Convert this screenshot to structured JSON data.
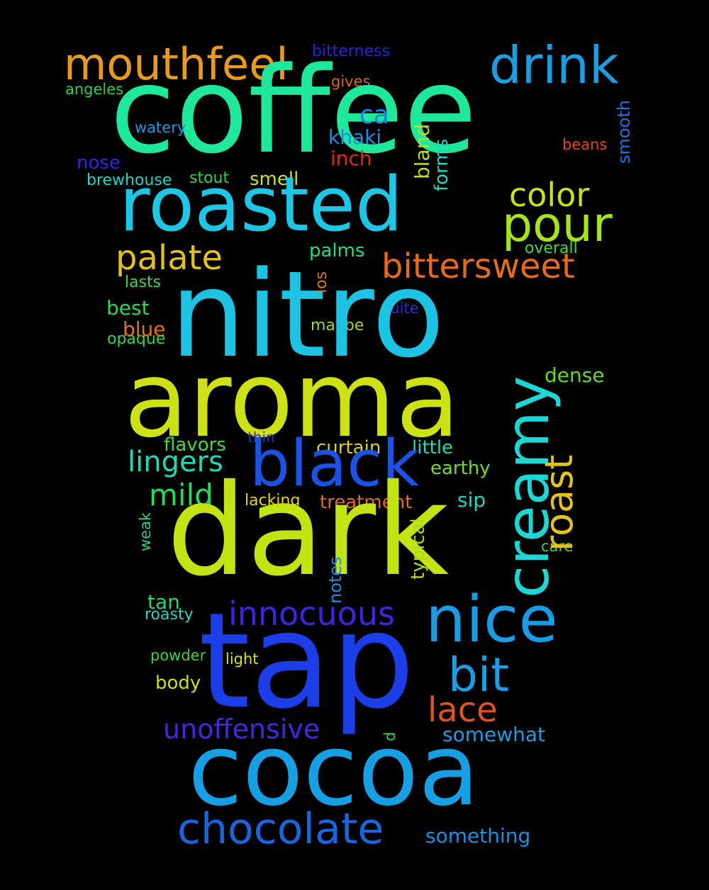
{
  "background": "#000000",
  "words": {
    "coffee": {
      "text": "coffee",
      "color": "#1ee89a"
    },
    "nitro": {
      "text": "nitro",
      "color": "#1cc3e2"
    },
    "aroma": {
      "text": "aroma",
      "color": "#cde215"
    },
    "dark": {
      "text": "dark",
      "color": "#c4e313"
    },
    "tap": {
      "text": "tap",
      "color": "#1b3ee8"
    },
    "cocoa": {
      "text": "cocoa",
      "color": "#169fe3"
    },
    "roasted": {
      "text": "roasted",
      "color": "#1cc6e4"
    },
    "mouthfeel": {
      "text": "mouthfeel",
      "color": "#e79a1c"
    },
    "drink": {
      "text": "drink",
      "color": "#1b9ee0"
    },
    "black": {
      "text": "black",
      "color": "#1a52e5"
    },
    "creamy": {
      "text": "creamy",
      "color": "#1cd7d5"
    },
    "nice": {
      "text": "nice",
      "color": "#1a9be6"
    },
    "chocolate": {
      "text": "chocolate",
      "color": "#1865e0"
    },
    "roast": {
      "text": "roast",
      "color": "#e3c31a"
    },
    "pour": {
      "text": "pour",
      "color": "#a5e31b"
    },
    "color": {
      "text": "color",
      "color": "#c1e41b"
    },
    "palate": {
      "text": "palate",
      "color": "#e3c01c"
    },
    "bittersweet": {
      "text": "bittersweet",
      "color": "#e56a1b"
    },
    "innocuous": {
      "text": "innocuous",
      "color": "#3a25e3"
    },
    "bit": {
      "text": "bit",
      "color": "#1a9de4"
    },
    "lace": {
      "text": "lace",
      "color": "#e2531b"
    },
    "unoffensive": {
      "text": "unoffensive",
      "color": "#4a22e2"
    },
    "lingers": {
      "text": "lingers",
      "color": "#1dd9b4"
    },
    "mild": {
      "text": "mild",
      "color": "#21dd58"
    },
    "ca": {
      "text": "ca",
      "color": "#1887e3"
    },
    "bitterness": {
      "text": "bitterness",
      "color": "#2b22d8"
    },
    "angeles": {
      "text": "angeles",
      "color": "#2cd14a"
    },
    "gives": {
      "text": "gives",
      "color": "#e0641a"
    },
    "smooth": {
      "text": "smooth",
      "color": "#1e73e0"
    },
    "watery": {
      "text": "watery",
      "color": "#1a9be0"
    },
    "khaki": {
      "text": "khaki",
      "color": "#1a8ee4"
    },
    "bland": {
      "text": "bland",
      "color": "#b8e01c"
    },
    "forms": {
      "text": "forms",
      "color": "#20d6c1"
    },
    "beans": {
      "text": "beans",
      "color": "#e1471c"
    },
    "nose": {
      "text": "nose",
      "color": "#3125e0"
    },
    "inch": {
      "text": "inch",
      "color": "#e2251b"
    },
    "brewhouse": {
      "text": "brewhouse",
      "color": "#1ed7c6"
    },
    "stout": {
      "text": "stout",
      "color": "#2fd455"
    },
    "smell": {
      "text": "smell",
      "color": "#cde01c"
    },
    "palms": {
      "text": "palms",
      "color": "#22dc83"
    },
    "overall": {
      "text": "overall",
      "color": "#3fdc3a"
    },
    "los": {
      "text": "los",
      "color": "#df7a1d"
    },
    "lasts": {
      "text": "lasts",
      "color": "#3dd649"
    },
    "best": {
      "text": "best",
      "color": "#27dc52"
    },
    "quite": {
      "text": "quite",
      "color": "#3a22dc"
    },
    "blue": {
      "text": "blue",
      "color": "#e1731a"
    },
    "maybe": {
      "text": "maybe",
      "color": "#96dd1e"
    },
    "opaque": {
      "text": "opaque",
      "color": "#3ad53f"
    },
    "dense": {
      "text": "dense",
      "color": "#5fdc27"
    },
    "thin": {
      "text": "thin",
      "color": "#3a28d8"
    },
    "flavors": {
      "text": "flavors",
      "color": "#3ddc42"
    },
    "curtain": {
      "text": "curtain",
      "color": "#dcd21a"
    },
    "little": {
      "text": "little",
      "color": "#20d9b8"
    },
    "earthy": {
      "text": "earthy",
      "color": "#77dc22"
    },
    "lacking": {
      "text": "lacking",
      "color": "#e3d81c"
    },
    "treatment": {
      "text": "treatment",
      "color": "#e26b1b"
    },
    "sip": {
      "text": "sip",
      "color": "#20d6c3"
    },
    "weak": {
      "text": "weak",
      "color": "#22d28b"
    },
    "typical": {
      "text": "typical",
      "color": "#a9df1e"
    },
    "care": {
      "text": "care",
      "color": "#42d837"
    },
    "notes": {
      "text": "notes",
      "color": "#1e90e0"
    },
    "tan": {
      "text": "tan",
      "color": "#27d964"
    },
    "roasty": {
      "text": "roasty",
      "color": "#20d7c3"
    },
    "powder": {
      "text": "powder",
      "color": "#3ad53c"
    },
    "light": {
      "text": "light",
      "color": "#d6e01c"
    },
    "body": {
      "text": "body",
      "color": "#c9e01c"
    },
    "d": {
      "text": "d",
      "color": "#2fd64e"
    },
    "somewhat": {
      "text": "somewhat",
      "color": "#1a9de0"
    },
    "something": {
      "text": "something",
      "color": "#1a90e4"
    }
  }
}
